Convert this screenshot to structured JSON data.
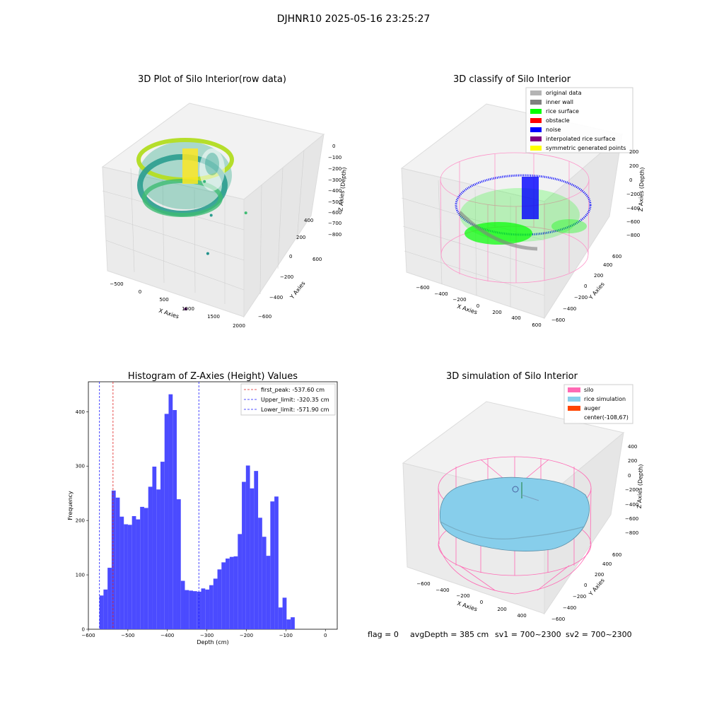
{
  "figure_title": "DJHNR10 2025-05-16 23:25:27",
  "footer": {
    "flag": "flag = 0",
    "avg_depth": "avgDepth = 385 cm",
    "sv1": "sv1 = 700~2300",
    "sv2": "sv2 = 700~2300"
  },
  "colors": {
    "hist_bar": "#4b4bff",
    "first_peak": "#e02020",
    "limits": "#1a1aff",
    "silo": "#ff69b4",
    "rice": "#87ceeb",
    "auger": "#ff4500",
    "grey": "#b4b4b4",
    "wall": "#808080",
    "surface": "#00ff00",
    "obstacle": "#ff0000",
    "noise": "#0000ff",
    "interp": "#800080",
    "sym": "#ffff00"
  },
  "chart_data": [
    {
      "type": "scatter",
      "title": "3D Plot of Silo Interior(row data)",
      "xlabel": "X Axies",
      "ylabel": "Y Axies",
      "zlabel": "Z Axies (Depth)",
      "x_ticks": [
        "−500",
        "0",
        "500",
        "1000",
        "1500",
        "2000"
      ],
      "y_ticks": [
        "−600",
        "−400",
        "−200",
        "0",
        "200",
        "400",
        "600"
      ],
      "z_ticks": [
        "0",
        "−100",
        "−200",
        "−300",
        "−400",
        "−500",
        "−600",
        "−700",
        "−800"
      ],
      "outliers": [
        {
          "x": 900,
          "y": 400,
          "z": -250
        },
        {
          "x": 1150,
          "y": 300,
          "z": -480
        },
        {
          "x": 1650,
          "y": 500,
          "z": -520
        },
        {
          "x": 1300,
          "y": 100,
          "z": -700
        },
        {
          "x": 1500,
          "y": -500,
          "z": -800
        }
      ]
    },
    {
      "type": "scatter",
      "title": "3D classify of Silo Interior",
      "xlabel": "X Axies",
      "ylabel": "Y Axies",
      "zlabel": "Z Axies (Depth)",
      "x_ticks": [
        "−600",
        "−400",
        "−200",
        "0",
        "200",
        "400",
        "600"
      ],
      "y_ticks": [
        "−600",
        "−400",
        "−200",
        "0",
        "200",
        "400",
        "600"
      ],
      "z_ticks": [
        "200",
        "0",
        "−200",
        "−400",
        "−600",
        "−800"
      ],
      "z_ticks_upper": [
        "400",
        "200",
        "0",
        "−200",
        "−400",
        "−600",
        "−800"
      ],
      "legend": [
        "original data",
        "inner wall",
        "rice surface",
        "obstacle",
        "noise",
        "interpolated rice surface",
        "symmetric generated points"
      ]
    },
    {
      "type": "bar",
      "title": "Histogram of Z-Axies (Height) Values",
      "xlabel": "Depth (cm)",
      "ylabel": "Frequency",
      "xlim": [
        -600,
        30
      ],
      "ylim": [
        0,
        455
      ],
      "x_ticks": [
        -600,
        -500,
        -400,
        -300,
        -200,
        -100,
        0
      ],
      "x_tick_labels": [
        "−600",
        "−500",
        "−400",
        "−300",
        "−200",
        "−100",
        "0"
      ],
      "y_ticks": [
        0,
        100,
        200,
        300,
        400
      ],
      "bin_start": -572,
      "bin_width": 10.3,
      "values": [
        62,
        73,
        113,
        255,
        242,
        207,
        193,
        192,
        208,
        202,
        225,
        223,
        262,
        299,
        257,
        308,
        396,
        432,
        403,
        239,
        89,
        72,
        71,
        70,
        69,
        75,
        73,
        81,
        93,
        110,
        123,
        130,
        133,
        134,
        175,
        271,
        301,
        259,
        291,
        205,
        170,
        135,
        235,
        244,
        40,
        58,
        18,
        22
      ],
      "lines": [
        {
          "label": "first_peak: -537.60 cm",
          "x": -537.6,
          "color": "red"
        },
        {
          "label": "Upper_limit: -320.35 cm",
          "x": -320.35,
          "color": "blue"
        },
        {
          "label": "Lower_limit: -571.90 cm",
          "x": -571.9,
          "color": "blue"
        }
      ]
    },
    {
      "type": "surface",
      "title": "3D simulation of Silo Interior",
      "xlabel": "X Axies",
      "ylabel": "Y Axies",
      "zlabel": "Z Axies (Depth)",
      "x_ticks": [
        "−600",
        "−400",
        "−200",
        "0",
        "200",
        "400"
      ],
      "y_ticks": [
        "−600",
        "−400",
        "−200",
        "0",
        "200",
        "400",
        "600"
      ],
      "z_ticks": [
        "400",
        "200",
        "0",
        "−200",
        "−400",
        "−600",
        "−800"
      ],
      "legend": [
        "silo",
        "rice simulation",
        "auger",
        "center(-108,67)"
      ]
    }
  ]
}
